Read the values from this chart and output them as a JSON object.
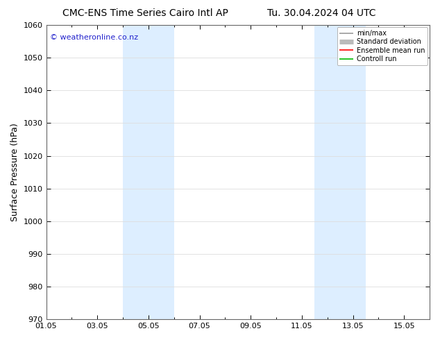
{
  "title_left": "CMC-ENS Time Series Cairo Intl AP",
  "title_right": "Tu. 30.04.2024 04 UTC",
  "ylabel": "Surface Pressure (hPa)",
  "watermark": "© weatheronline.co.nz",
  "ylim": [
    970,
    1060
  ],
  "yticks": [
    970,
    980,
    990,
    1000,
    1010,
    1020,
    1030,
    1040,
    1050,
    1060
  ],
  "xtick_labels": [
    "01.05",
    "03.05",
    "05.05",
    "07.05",
    "09.05",
    "11.05",
    "13.05",
    "15.05"
  ],
  "xtick_positions": [
    0,
    2,
    4,
    6,
    8,
    10,
    12,
    14
  ],
  "xlim": [
    0,
    15
  ],
  "shaded_bands": [
    {
      "x_start": 3.0,
      "x_end": 5.0,
      "color": "#ddeeff"
    },
    {
      "x_start": 10.5,
      "x_end": 12.5,
      "color": "#ddeeff"
    }
  ],
  "legend_entries": [
    {
      "label": "min/max",
      "color": "#999999",
      "lw": 1.2
    },
    {
      "label": "Standard deviation",
      "color": "#bbbbbb",
      "lw": 5
    },
    {
      "label": "Ensemble mean run",
      "color": "#ff0000",
      "lw": 1.2
    },
    {
      "label": "Controll run",
      "color": "#00bb00",
      "lw": 1.2
    }
  ],
  "bg_color": "#ffffff",
  "plot_bg_color": "#ffffff",
  "grid_color": "#dddddd",
  "title_fontsize": 10,
  "axis_fontsize": 8,
  "ylabel_fontsize": 9,
  "watermark_color": "#2222cc",
  "watermark_fontsize": 8
}
